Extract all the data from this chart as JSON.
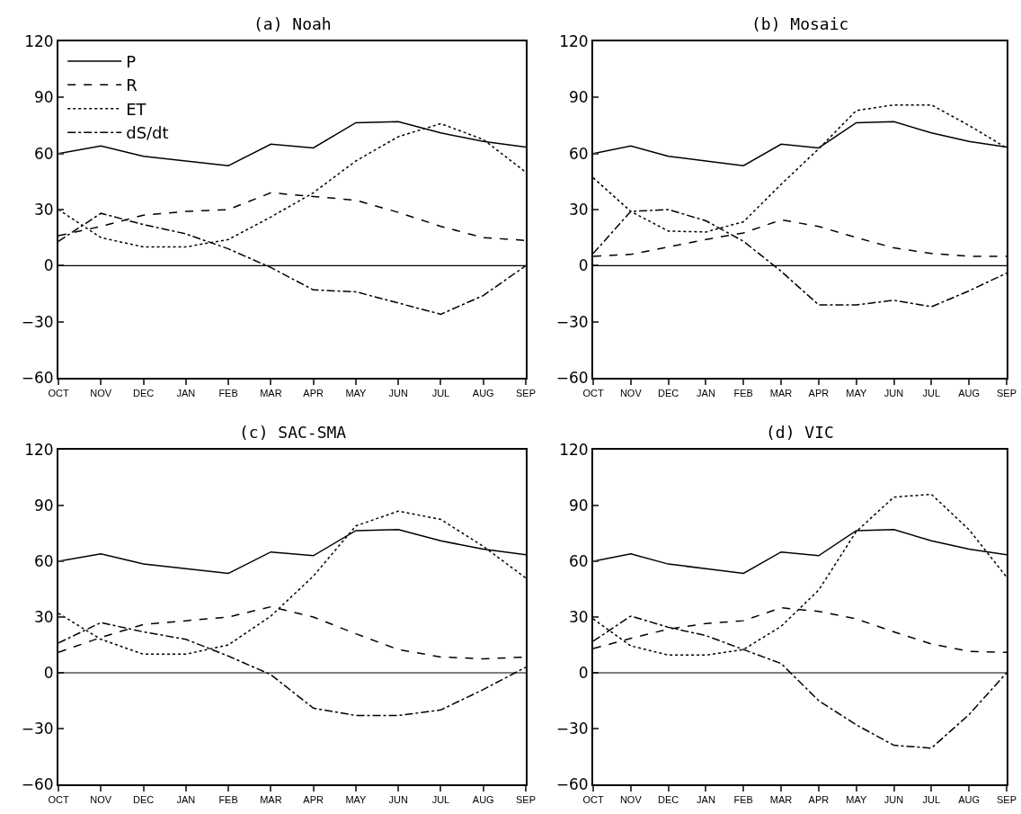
{
  "chart_data": [
    {
      "type": "line",
      "title": "(a) Noah",
      "categories": [
        "OCT",
        "NOV",
        "DEC",
        "JAN",
        "FEB",
        "MAR",
        "APR",
        "MAY",
        "JUN",
        "JUL",
        "AUG",
        "SEP"
      ],
      "ylim": [
        -60,
        120
      ],
      "yticks": [
        -60,
        -30,
        0,
        30,
        60,
        90,
        120
      ],
      "legend": "top left",
      "ref_lines": [
        {
          "axis": "y",
          "value": 0,
          "color": "#000000"
        }
      ],
      "series": [
        {
          "name": "P",
          "color": "#000000",
          "line_style": "solid",
          "values": [
            60,
            64,
            58.5,
            56,
            53.5,
            65,
            63,
            76.5,
            77,
            71,
            66.5,
            63.5
          ]
        },
        {
          "name": "R",
          "color": "#000000",
          "line_style": "dashed",
          "values": [
            16,
            21,
            27,
            29,
            30,
            39,
            37,
            35,
            28.5,
            21,
            15,
            13.5
          ]
        },
        {
          "name": "ET",
          "color": "#000000",
          "line_style": "dotted",
          "values": [
            30,
            15,
            10,
            10,
            14,
            26,
            39,
            56,
            69,
            76,
            67.5,
            50
          ]
        },
        {
          "name": "dS/dt",
          "color": "#000000",
          "line_style": "dashdot",
          "values": [
            13,
            28,
            22,
            17,
            9,
            -1,
            -13,
            -14,
            -20,
            -26,
            -16,
            0
          ]
        }
      ]
    },
    {
      "type": "line",
      "title": "(b) Mosaic",
      "categories": [
        "OCT",
        "NOV",
        "DEC",
        "JAN",
        "FEB",
        "MAR",
        "APR",
        "MAY",
        "JUN",
        "JUL",
        "AUG",
        "SEP"
      ],
      "ylim": [
        -60,
        120
      ],
      "yticks": [
        -60,
        -30,
        0,
        30,
        60,
        90,
        120
      ],
      "ref_lines": [
        {
          "axis": "y",
          "value": 0,
          "color": "#000000"
        }
      ],
      "series": [
        {
          "color": "#000000",
          "line_style": "solid",
          "values": [
            60,
            64,
            58.5,
            56,
            53.5,
            65,
            63,
            76.5,
            77,
            71,
            66.5,
            63.5
          ]
        },
        {
          "color": "#000000",
          "line_style": "dashed",
          "values": [
            5,
            6,
            10,
            14,
            17.5,
            24.5,
            21,
            15,
            9.5,
            6.5,
            5,
            5
          ]
        },
        {
          "color": "#000000",
          "line_style": "dotted",
          "values": [
            47,
            29,
            18.5,
            18,
            23.5,
            43.5,
            62.5,
            83,
            86,
            86,
            75,
            63
          ]
        },
        {
          "color": "#000000",
          "line_style": "dashdot",
          "values": [
            6.5,
            29,
            30,
            24,
            13,
            -3,
            -21,
            -21,
            -18.5,
            -22,
            -13.5,
            -4
          ]
        }
      ]
    },
    {
      "type": "line",
      "title": "(c) SAC-SMA",
      "categories": [
        "OCT",
        "NOV",
        "DEC",
        "JAN",
        "FEB",
        "MAR",
        "APR",
        "MAY",
        "JUN",
        "JUL",
        "AUG",
        "SEP"
      ],
      "ylim": [
        -60,
        120
      ],
      "yticks": [
        -60,
        -30,
        0,
        30,
        60,
        90,
        120
      ],
      "ref_lines": [
        {
          "axis": "y",
          "value": 0,
          "color": "#000000"
        }
      ],
      "series": [
        {
          "color": "#000000",
          "line_style": "solid",
          "values": [
            60,
            64,
            58.5,
            56,
            53.5,
            65,
            63,
            76.5,
            77,
            71,
            66.5,
            63.5
          ]
        },
        {
          "color": "#000000",
          "line_style": "dashed",
          "values": [
            11,
            19,
            26,
            28,
            30,
            35.5,
            30,
            21,
            12.5,
            8.5,
            7.5,
            8.5
          ]
        },
        {
          "color": "#000000",
          "line_style": "dotted",
          "values": [
            32,
            18,
            10,
            10,
            15,
            30.5,
            52,
            79,
            87,
            82.5,
            68,
            51
          ]
        },
        {
          "color": "#000000",
          "line_style": "dashdot",
          "values": [
            16,
            27,
            22,
            18,
            9,
            -1,
            -19,
            -23,
            -23,
            -20,
            -9,
            3
          ]
        }
      ]
    },
    {
      "type": "line",
      "title": "(d) VIC",
      "categories": [
        "OCT",
        "NOV",
        "DEC",
        "JAN",
        "FEB",
        "MAR",
        "APR",
        "MAY",
        "JUN",
        "JUL",
        "AUG",
        "SEP"
      ],
      "ylim": [
        -60,
        120
      ],
      "yticks": [
        -60,
        -30,
        0,
        30,
        60,
        90,
        120
      ],
      "ref_lines": [
        {
          "axis": "y",
          "value": 0,
          "color": "#000000"
        }
      ],
      "series": [
        {
          "color": "#000000",
          "line_style": "solid",
          "values": [
            60,
            64,
            58.5,
            56,
            53.5,
            65,
            63,
            76.5,
            77,
            71,
            66.5,
            63.5
          ]
        },
        {
          "color": "#000000",
          "line_style": "dashed",
          "values": [
            13,
            18.5,
            23.5,
            26.5,
            28,
            35,
            33,
            29,
            22,
            15.5,
            11.5,
            11
          ]
        },
        {
          "color": "#000000",
          "line_style": "dotted",
          "values": [
            29,
            14.5,
            9.5,
            9.5,
            12.5,
            25,
            44.5,
            76,
            94.5,
            96,
            77,
            51.5
          ]
        },
        {
          "color": "#000000",
          "line_style": "dashdot",
          "values": [
            17,
            30.5,
            24.5,
            20,
            12.5,
            5,
            -15,
            -28,
            -39,
            -40.5,
            -22.5,
            0
          ]
        }
      ]
    }
  ]
}
